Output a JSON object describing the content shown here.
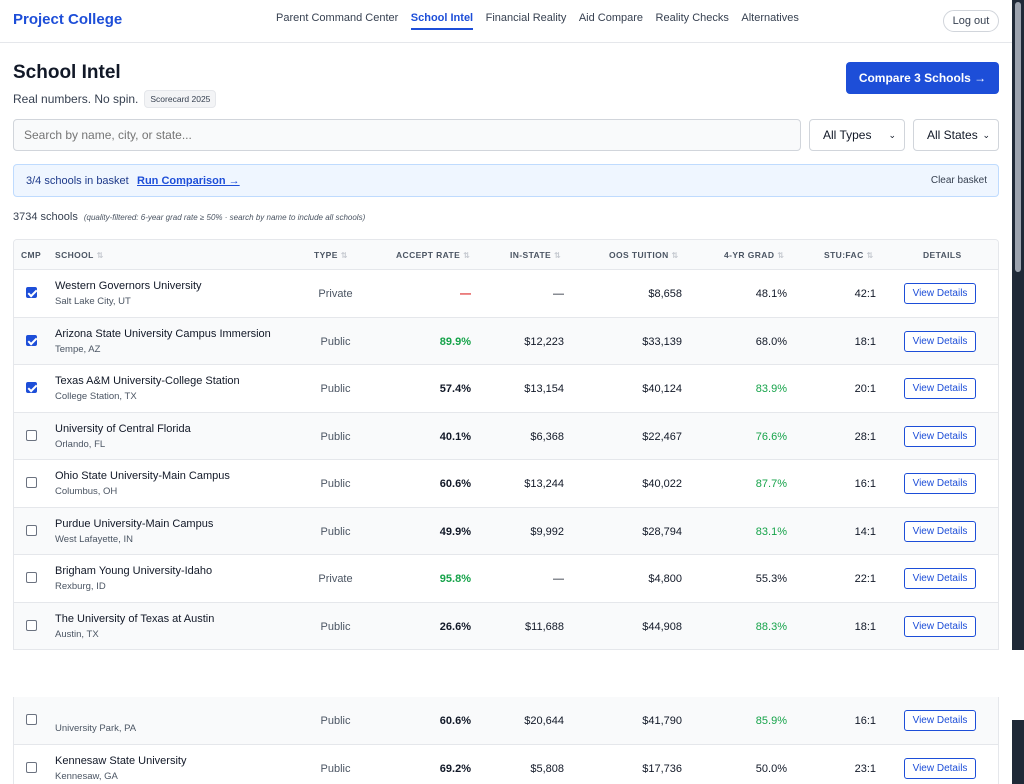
{
  "brand": "Project College",
  "nav": {
    "links": [
      "Parent Command Center",
      "School Intel",
      "Financial Reality",
      "Aid Compare",
      "Reality Checks",
      "Alternatives"
    ],
    "active": "School Intel",
    "logout": "Log out"
  },
  "header": {
    "title": "School Intel",
    "subtitle": "Real numbers. No spin.",
    "badge": "Scorecard 2025",
    "compare_button": "Compare 3 Schools →"
  },
  "search": {
    "placeholder": "Search by name, city, or state...",
    "type_filter": "All Types",
    "state_filter": "All States"
  },
  "basket": {
    "count": "3/4 schools in basket",
    "run": "Run Comparison →",
    "clear": "Clear basket"
  },
  "results": {
    "count": "3734 schools",
    "note": "(quality-filtered: 6-year grad rate ≥ 50% · search by name to include all schools)"
  },
  "table": {
    "headers": {
      "cmp": "CMP",
      "school": "SCHOOL",
      "type": "TYPE",
      "accept": "ACCEPT RATE",
      "instate": "IN-STATE",
      "oos": "OOS TUITION",
      "grad": "4-YR GRAD",
      "ratio": "STU:FAC",
      "details": "DETAILS"
    },
    "view_label": "View Details",
    "rows": [
      {
        "checked": true,
        "name": "Western Governors University",
        "location": "Salt Lake City, UT",
        "type": "Private",
        "accept": "—",
        "accept_color": "red",
        "instate": "—",
        "oos": "$8,658",
        "grad": "48.1%",
        "grad_color": "",
        "ratio": "42:1"
      },
      {
        "checked": true,
        "name": "Arizona State University Campus Immersion",
        "location": "Tempe, AZ",
        "type": "Public",
        "accept": "89.9%",
        "accept_color": "green",
        "instate": "$12,223",
        "oos": "$33,139",
        "grad": "68.0%",
        "grad_color": "",
        "ratio": "18:1"
      },
      {
        "checked": true,
        "name": "Texas A&M University-College Station",
        "location": "College Station, TX",
        "type": "Public",
        "accept": "57.4%",
        "accept_color": "",
        "instate": "$13,154",
        "oos": "$40,124",
        "grad": "83.9%",
        "grad_color": "green",
        "ratio": "20:1"
      },
      {
        "checked": false,
        "name": "University of Central Florida",
        "location": "Orlando, FL",
        "type": "Public",
        "accept": "40.1%",
        "accept_color": "",
        "instate": "$6,368",
        "oos": "$22,467",
        "grad": "76.6%",
        "grad_color": "green",
        "ratio": "28:1"
      },
      {
        "checked": false,
        "name": "Ohio State University-Main Campus",
        "location": "Columbus, OH",
        "type": "Public",
        "accept": "60.6%",
        "accept_color": "",
        "instate": "$13,244",
        "oos": "$40,022",
        "grad": "87.7%",
        "grad_color": "green",
        "ratio": "16:1"
      },
      {
        "checked": false,
        "name": "Purdue University-Main Campus",
        "location": "West Lafayette, IN",
        "type": "Public",
        "accept": "49.9%",
        "accept_color": "",
        "instate": "$9,992",
        "oos": "$28,794",
        "grad": "83.1%",
        "grad_color": "green",
        "ratio": "14:1"
      },
      {
        "checked": false,
        "name": "Brigham Young University-Idaho",
        "location": "Rexburg, ID",
        "type": "Private",
        "accept": "95.8%",
        "accept_color": "green",
        "instate": "—",
        "oos": "$4,800",
        "grad": "55.3%",
        "grad_color": "",
        "ratio": "22:1"
      },
      {
        "checked": false,
        "name": "The University of Texas at Austin",
        "location": "Austin, TX",
        "type": "Public",
        "accept": "26.6%",
        "accept_color": "",
        "instate": "$11,688",
        "oos": "$44,908",
        "grad": "88.3%",
        "grad_color": "green",
        "ratio": "18:1"
      }
    ],
    "lower_rows": [
      {
        "checked": false,
        "name": "",
        "location": "University Park, PA",
        "type": "Public",
        "accept": "60.6%",
        "accept_color": "",
        "instate": "$20,644",
        "oos": "$41,790",
        "grad": "85.9%",
        "grad_color": "green",
        "ratio": "16:1"
      },
      {
        "checked": false,
        "name": "Kennesaw State University",
        "location": "Kennesaw, GA",
        "type": "Public",
        "accept": "69.2%",
        "accept_color": "",
        "instate": "$5,808",
        "oos": "$17,736",
        "grad": "50.0%",
        "grad_color": "",
        "ratio": "23:1"
      }
    ]
  },
  "colors": {
    "accent": "#1d4ed8",
    "good": "#16a34a",
    "bad": "#dc2626"
  }
}
